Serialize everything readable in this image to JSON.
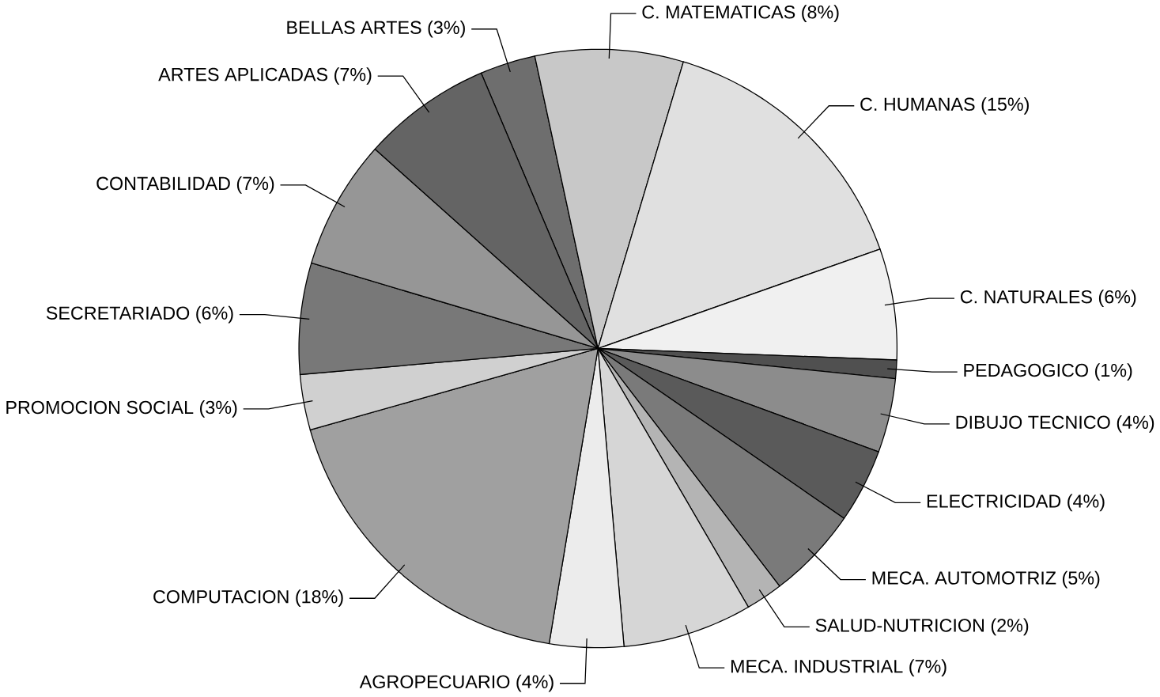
{
  "chart_data": {
    "type": "pie",
    "categories": [
      "BELLAS ARTES",
      "C. MATEMATICAS",
      "C. HUMANAS",
      "C. NATURALES",
      "PEDAGOGICO",
      "DIBUJO TECNICO",
      "ELECTRICIDAD",
      "MECA. AUTOMOTRIZ",
      "SALUD-NUTRICION",
      "MECA. INDUSTRIAL",
      "AGROPECUARIO",
      "COMPUTACION",
      "PROMOCION SOCIAL",
      "SECRETARIADO",
      "CONTABILIDAD",
      "ARTES APLICADAS"
    ],
    "values": [
      3,
      8,
      15,
      6,
      1,
      4,
      4,
      5,
      2,
      7,
      4,
      18,
      3,
      6,
      7,
      7
    ],
    "value_labels": [
      "(3%)",
      "(8%)",
      "(15%)",
      "(6%)",
      "(1%)",
      "(4%)",
      "(4%)",
      "(5%)",
      "(2%)",
      "(7%)",
      "(4%)",
      "(18%)",
      "(3%)",
      "(6%)",
      "(7%)",
      "(7%)"
    ],
    "colors": [
      "#6e6e6e",
      "#c8c8c8",
      "#e0e0e0",
      "#f0f0f0",
      "#505050",
      "#8c8c8c",
      "#5a5a5a",
      "#7a7a7a",
      "#b4b4b4",
      "#d6d6d6",
      "#ececec",
      "#a0a0a0",
      "#d0d0d0",
      "#787878",
      "#969696",
      "#646464"
    ]
  }
}
